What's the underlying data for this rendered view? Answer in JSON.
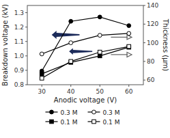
{
  "chart_data": {
    "type": "line",
    "xlabel": "Anodic voltage (V)",
    "ylabel": "Breakdown voltage (kV)",
    "y2label": "Thickness (μm)",
    "x": [
      30,
      40,
      50,
      60
    ],
    "series": [
      {
        "name": "0.3 M",
        "color": "#000000",
        "marker": "circle",
        "values": [
          0.895,
          1.24,
          1.27,
          1.21
        ]
      },
      {
        "name": "0.1 M",
        "color": "#000000",
        "marker": "square",
        "values": [
          0.875,
          0.955,
          1.0,
          1.06
        ]
      },
      {
        "name": "0.3 M",
        "color": "#000000",
        "marker": "circle-open",
        "axis": "y2",
        "values": [
          88,
          100,
          108,
          110
        ]
      },
      {
        "name": "0.1 M",
        "color": "#000000",
        "marker": "square-open",
        "axis": "y2",
        "values": [
          62,
          80,
          90,
          96
        ]
      }
    ],
    "xlim": [
      25,
      65
    ],
    "xticks": [
      30,
      40,
      50,
      60
    ],
    "ylim": [
      0.8,
      1.35
    ],
    "yticks": [
      0.8,
      0.9,
      {
        "value": 1.0,
        "label": "1.0"
      },
      1.1,
      1.2,
      1.3
    ],
    "y2lim": [
      55,
      140
    ],
    "y2ticks": [
      60,
      80,
      100,
      120,
      140
    ],
    "grid": false,
    "legend": "bottom"
  }
}
